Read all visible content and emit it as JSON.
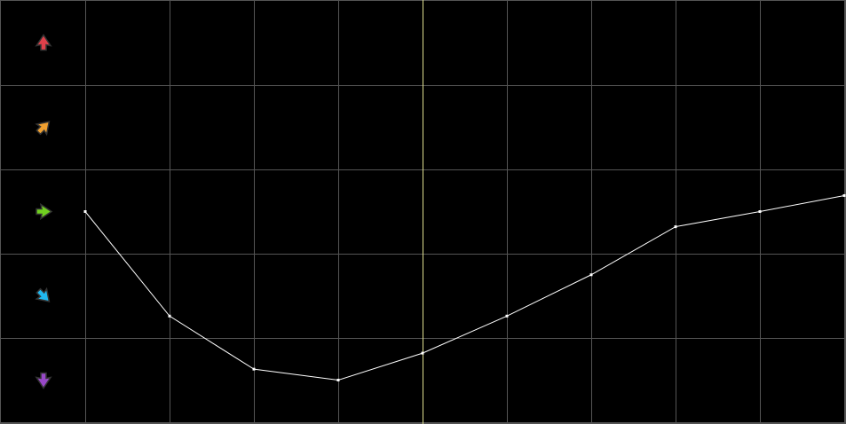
{
  "chart_data": {
    "type": "line",
    "title": "",
    "xlabel": "",
    "ylabel": "",
    "x": [
      1,
      2,
      3,
      4,
      5,
      6,
      7,
      8,
      9,
      10
    ],
    "series": [
      {
        "values": [
          0.0,
          -1.24,
          -1.87,
          -2.0,
          -1.68,
          -1.24,
          -0.75,
          -0.18,
          0.0,
          0.19
        ],
        "color": "#ffffff"
      }
    ],
    "ylim": [
      -2.5,
      2.5
    ],
    "grid": true,
    "highlight_x": 5,
    "highlight_color": "#e0e090",
    "row_levels": [
      {
        "level": 2,
        "icon": "arrow-up-icon",
        "color": "#e0404a"
      },
      {
        "level": 1,
        "icon": "arrow-up-right-icon",
        "color": "#f0a030"
      },
      {
        "level": 0,
        "icon": "arrow-right-icon",
        "color": "#70d020"
      },
      {
        "level": -1,
        "icon": "arrow-down-right-icon",
        "color": "#20b8f0"
      },
      {
        "level": -2,
        "icon": "arrow-down-icon",
        "color": "#9848c8"
      }
    ],
    "colors": {
      "background": "#000000",
      "grid": "#555555"
    }
  }
}
